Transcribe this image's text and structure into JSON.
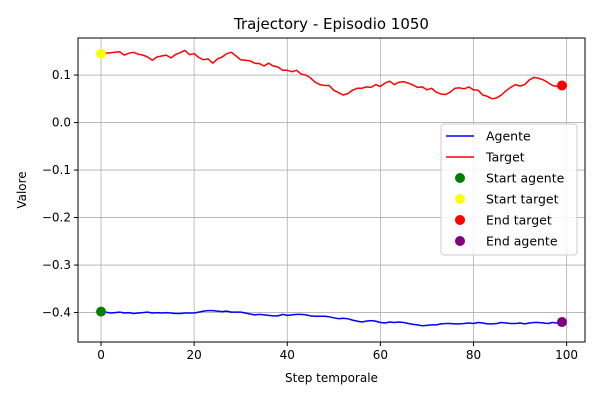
{
  "chart_data": {
    "type": "line",
    "title": "Trajectory - Episodio 1050",
    "xlabel": "Step temporale",
    "ylabel": "Valore",
    "xlim": [
      -4.95,
      103.95
    ],
    "ylim": [
      -0.462,
      0.178
    ],
    "xticks": [
      0,
      20,
      40,
      60,
      80,
      100
    ],
    "yticks": [
      -0.4,
      -0.3,
      -0.2,
      -0.1,
      0.0,
      0.1
    ],
    "ytick_labels": [
      "−0.4",
      "−0.3",
      "−0.2",
      "−0.1",
      "0.0",
      "0.1"
    ],
    "grid": true,
    "legend_position": "center-right",
    "series": [
      {
        "name": "Agente",
        "color": "#0000ff",
        "x": [
          0,
          1,
          2,
          3,
          4,
          5,
          6,
          7,
          8,
          9,
          10,
          11,
          12,
          13,
          14,
          15,
          16,
          17,
          18,
          19,
          20,
          21,
          22,
          23,
          24,
          25,
          26,
          27,
          28,
          29,
          30,
          31,
          32,
          33,
          34,
          35,
          36,
          37,
          38,
          39,
          40,
          41,
          42,
          43,
          44,
          45,
          46,
          47,
          48,
          49,
          50,
          51,
          52,
          53,
          54,
          55,
          56,
          57,
          58,
          59,
          60,
          61,
          62,
          63,
          64,
          65,
          66,
          67,
          68,
          69,
          70,
          71,
          72,
          73,
          74,
          75,
          76,
          77,
          78,
          79,
          80,
          81,
          82,
          83,
          84,
          85,
          86,
          87,
          88,
          89,
          90,
          91,
          92,
          93,
          94,
          95,
          96,
          97,
          98,
          99
        ],
        "y": [
          -0.398,
          -0.399,
          -0.401,
          -0.4,
          -0.399,
          -0.401,
          -0.4,
          -0.402,
          -0.401,
          -0.4,
          -0.399,
          -0.401,
          -0.4,
          -0.401,
          -0.4,
          -0.401,
          -0.402,
          -0.402,
          -0.401,
          -0.401,
          -0.401,
          -0.399,
          -0.397,
          -0.396,
          -0.396,
          -0.397,
          -0.398,
          -0.397,
          -0.399,
          -0.399,
          -0.399,
          -0.401,
          -0.403,
          -0.405,
          -0.404,
          -0.405,
          -0.406,
          -0.407,
          -0.407,
          -0.404,
          -0.406,
          -0.405,
          -0.404,
          -0.404,
          -0.405,
          -0.407,
          -0.408,
          -0.408,
          -0.408,
          -0.409,
          -0.411,
          -0.413,
          -0.412,
          -0.413,
          -0.416,
          -0.418,
          -0.42,
          -0.418,
          -0.417,
          -0.418,
          -0.421,
          -0.422,
          -0.42,
          -0.421,
          -0.42,
          -0.421,
          -0.423,
          -0.425,
          -0.426,
          -0.428,
          -0.427,
          -0.426,
          -0.426,
          -0.424,
          -0.423,
          -0.423,
          -0.424,
          -0.424,
          -0.423,
          -0.422,
          -0.423,
          -0.421,
          -0.422,
          -0.424,
          -0.424,
          -0.423,
          -0.421,
          -0.422,
          -0.423,
          -0.423,
          -0.422,
          -0.424,
          -0.422,
          -0.421,
          -0.421,
          -0.422,
          -0.423,
          -0.421,
          -0.422,
          -0.42
        ]
      },
      {
        "name": "Target",
        "color": "#ff0000",
        "x": [
          0,
          1,
          2,
          3,
          4,
          5,
          6,
          7,
          8,
          9,
          10,
          11,
          12,
          13,
          14,
          15,
          16,
          17,
          18,
          19,
          20,
          21,
          22,
          23,
          24,
          25,
          26,
          27,
          28,
          29,
          30,
          31,
          32,
          33,
          34,
          35,
          36,
          37,
          38,
          39,
          40,
          41,
          42,
          43,
          44,
          45,
          46,
          47,
          48,
          49,
          50,
          51,
          52,
          53,
          54,
          55,
          56,
          57,
          58,
          59,
          60,
          61,
          62,
          63,
          64,
          65,
          66,
          67,
          68,
          69,
          70,
          71,
          72,
          73,
          74,
          75,
          76,
          77,
          78,
          79,
          80,
          81,
          82,
          83,
          84,
          85,
          86,
          87,
          88,
          89,
          90,
          91,
          92,
          93,
          94,
          95,
          96,
          97,
          98,
          99
        ],
        "y": [
          0.145,
          0.146,
          0.147,
          0.148,
          0.149,
          0.142,
          0.146,
          0.148,
          0.144,
          0.142,
          0.138,
          0.131,
          0.138,
          0.14,
          0.142,
          0.136,
          0.143,
          0.147,
          0.152,
          0.143,
          0.145,
          0.137,
          0.132,
          0.134,
          0.125,
          0.134,
          0.138,
          0.145,
          0.148,
          0.14,
          0.132,
          0.131,
          0.13,
          0.125,
          0.124,
          0.119,
          0.125,
          0.119,
          0.117,
          0.11,
          0.11,
          0.107,
          0.11,
          0.102,
          0.1,
          0.094,
          0.085,
          0.08,
          0.078,
          0.078,
          0.068,
          0.063,
          0.058,
          0.061,
          0.068,
          0.072,
          0.072,
          0.075,
          0.074,
          0.08,
          0.076,
          0.083,
          0.087,
          0.08,
          0.085,
          0.086,
          0.083,
          0.079,
          0.074,
          0.075,
          0.069,
          0.072,
          0.064,
          0.06,
          0.059,
          0.064,
          0.072,
          0.073,
          0.071,
          0.075,
          0.069,
          0.068,
          0.058,
          0.055,
          0.05,
          0.052,
          0.058,
          0.067,
          0.074,
          0.08,
          0.077,
          0.08,
          0.09,
          0.095,
          0.093,
          0.09,
          0.084,
          0.078,
          0.076,
          0.078
        ]
      }
    ],
    "markers": [
      {
        "name": "Start agente",
        "x": 0,
        "y": -0.398,
        "color": "#008000"
      },
      {
        "name": "Start target",
        "x": 0,
        "y": 0.145,
        "color": "#ffff00"
      },
      {
        "name": "End target",
        "x": 99,
        "y": 0.078,
        "color": "#ff0000"
      },
      {
        "name": "End agente",
        "x": 99,
        "y": -0.42,
        "color": "#800080"
      }
    ]
  }
}
